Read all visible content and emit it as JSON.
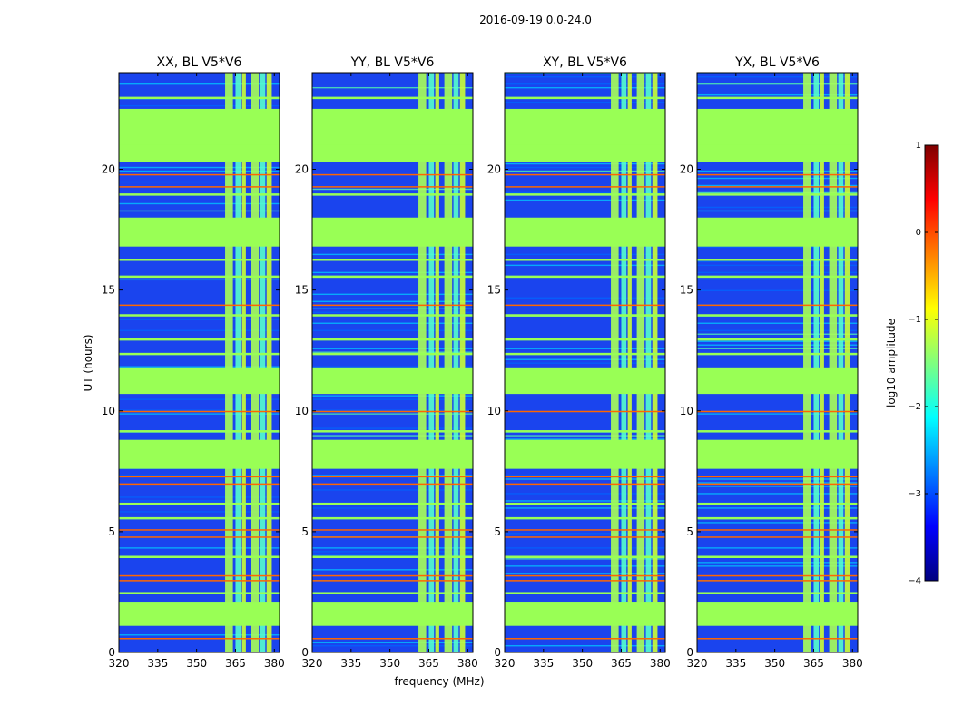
{
  "figure": {
    "suptitle": "2016-09-19 0.0-24.0",
    "xlabel": "frequency (MHz)",
    "ylabel": "UT (hours)"
  },
  "chart_data": {
    "type": "heatmap",
    "title": "2016-09-19 0.0-24.0",
    "xlabel": "frequency (MHz)",
    "ylabel": "UT (hours)",
    "xlim": [
      320,
      382
    ],
    "ylim": [
      0,
      24
    ],
    "xticks": [
      320,
      335,
      350,
      365,
      380
    ],
    "xtick_labels": [
      "320",
      "335",
      "350",
      "365",
      "380"
    ],
    "yticks": [
      0,
      5,
      10,
      15,
      20
    ],
    "ytick_labels": [
      "0",
      "5",
      "10",
      "15",
      "20"
    ],
    "panels": [
      {
        "title": "XX, BL V5*V6",
        "polarization": "XX"
      },
      {
        "title": "YY, BL V5*V6",
        "polarization": "YY"
      },
      {
        "title": "XY, BL V5*V6",
        "polarization": "XY"
      },
      {
        "title": "YX, BL V5*V6",
        "polarization": "YX"
      }
    ],
    "flagged_time_ranges_hours": [
      [
        1.1,
        2.1
      ],
      [
        7.6,
        8.8
      ],
      [
        10.7,
        11.8
      ],
      [
        16.8,
        18.0
      ],
      [
        20.3,
        22.5
      ]
    ],
    "rfi_frequency_bands_mhz": [
      [
        361,
        364
      ],
      [
        365,
        367
      ],
      [
        367.5,
        369
      ],
      [
        371,
        374
      ],
      [
        374.5,
        376.5
      ],
      [
        377,
        379
      ]
    ],
    "data_region_hours": [
      0.0,
      24.0
    ],
    "colorbar": {
      "label": "log10 amplitude",
      "min": -4,
      "max": 1,
      "ticks": [
        1,
        0,
        -1,
        -2,
        -3,
        -4
      ],
      "tick_labels": [
        "1",
        "0",
        "−1",
        "−2",
        "−3",
        "−4"
      ],
      "colormap": "jet"
    }
  },
  "colors": {
    "flagged": "#99ff55",
    "background": "#1a44ee",
    "rfi_high": "#ff6600",
    "jet_stops": [
      "#00007f",
      "#0000ff",
      "#007fff",
      "#00ffff",
      "#7fff7f",
      "#ffff00",
      "#ff7f00",
      "#ff0000",
      "#7f0000"
    ]
  }
}
